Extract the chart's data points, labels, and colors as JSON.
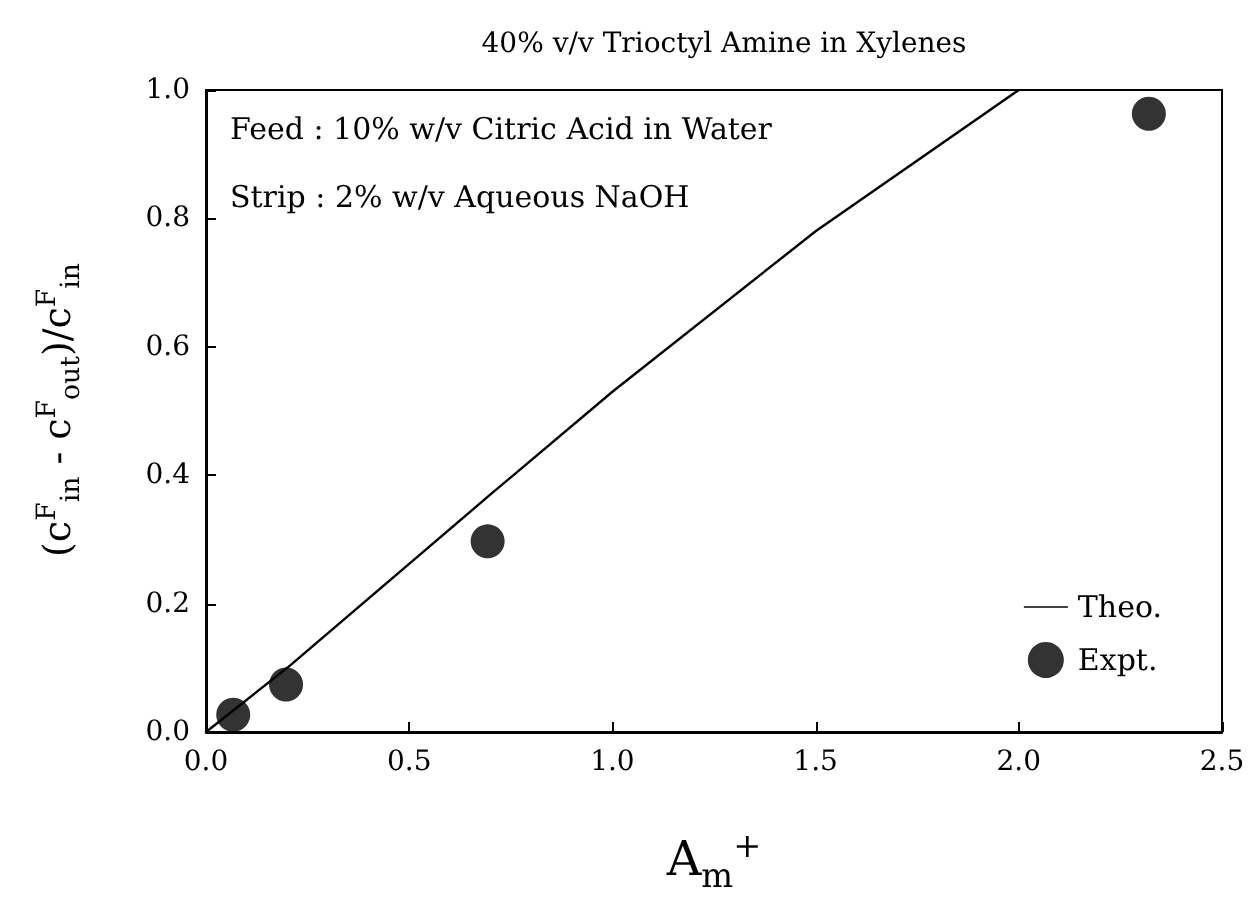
{
  "chart_data": {
    "type": "scatter",
    "title": "40% v/v Trioctyl Amine in Xylenes",
    "xlabel": "A$_{m}$$^{+}$",
    "ylabel": "(c$^{F}$$_{in}$ - c$^{F}$$_{out}$)/c$^{F}$$_{in}$",
    "annotations": [
      "Feed : 10% w/v Citric Acid in Water",
      "Strip : 2% w/v Aqueous NaOH"
    ],
    "series": [
      {
        "name": "Theo.",
        "type": "line",
        "marker": "none",
        "line_style": "solid",
        "color": "#000000",
        "x": [
          0,
          0.2,
          0.7,
          1.0,
          1.5,
          2.0
        ],
        "values": [
          0,
          0.1,
          0.37,
          0.53,
          0.78,
          1.0
        ]
      },
      {
        "name": "Expt.",
        "marker": "circle",
        "color": "#000000",
        "x": [
          0.067,
          0.197,
          0.693,
          2.32
        ],
        "values": [
          0.027,
          0.074,
          0.297,
          0.963
        ]
      }
    ],
    "xlim": [
      0,
      2.5
    ],
    "xticks": [
      {
        "value": 0,
        "label": "0.0"
      },
      0.5,
      {
        "value": 1,
        "label": "1.0"
      },
      1.5,
      {
        "value": 2,
        "label": "2.0"
      },
      2.5
    ],
    "ylim": [
      0,
      1.0
    ],
    "yticks": [
      {
        "value": 0,
        "label": "0.0"
      },
      0.2,
      0.4,
      0.6,
      0.8,
      {
        "value": 1,
        "label": "1.0"
      }
    ],
    "grid": false,
    "legend": "bottom right"
  }
}
